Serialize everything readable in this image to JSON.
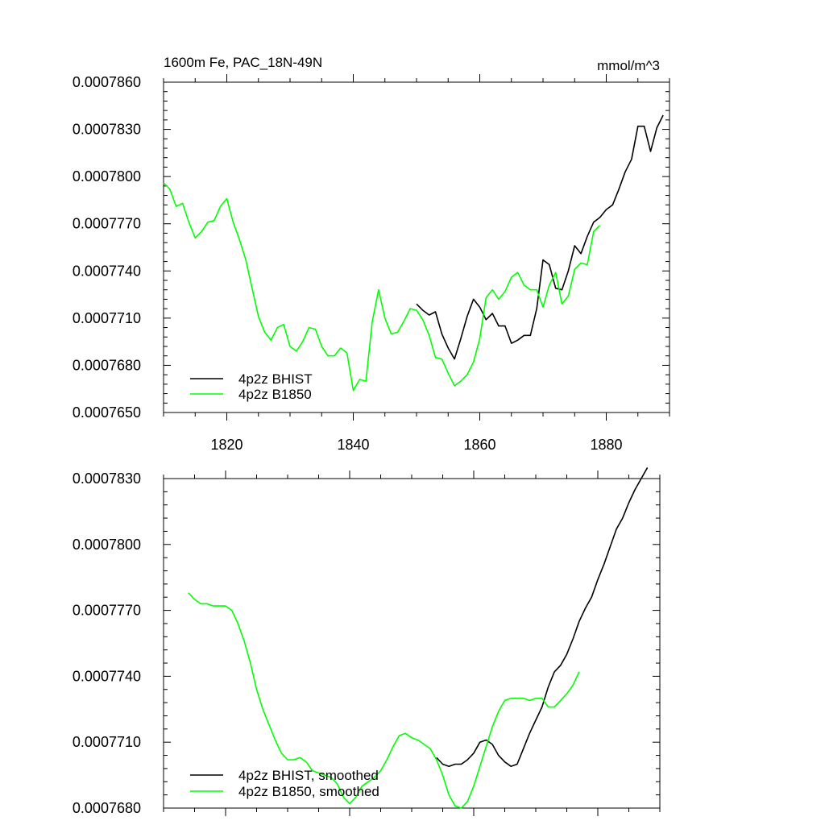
{
  "chart_data": [
    {
      "type": "line",
      "title_left": "1600m Fe, PAC_18N-49N",
      "title_right": "mmol/m^3",
      "xlim": [
        1810,
        1890
      ],
      "ylim": [
        0.000765,
        0.000786
      ],
      "x_ticks": [
        1820,
        1840,
        1860,
        1880
      ],
      "x_tick_labels": [
        "1820",
        "1840",
        "1860",
        "1880"
      ],
      "y_ticks": [
        0.000765,
        0.000768,
        0.000771,
        0.000774,
        0.000777,
        0.00078,
        0.000783,
        0.000786
      ],
      "y_tick_labels": [
        "0.0007650",
        "0.0007680",
        "0.0007710",
        "0.0007740",
        "0.0007770",
        "0.0007800",
        "0.0007830",
        "0.0007860"
      ],
      "legend_position": "bottom-left",
      "series": [
        {
          "name": "4p2z BHIST",
          "color": "#000000",
          "x": [
            1850,
            1851,
            1852,
            1853,
            1854,
            1855,
            1856,
            1857,
            1858,
            1859,
            1860,
            1861,
            1862,
            1863,
            1864,
            1865,
            1866,
            1867,
            1868,
            1869,
            1870,
            1871,
            1872,
            1873,
            1874,
            1875,
            1876,
            1877,
            1878,
            1879,
            1880,
            1881,
            1882,
            1883,
            1884,
            1885,
            1886,
            1887,
            1888,
            1889
          ],
          "values": [
            0.0007719,
            0.0007715,
            0.0007712,
            0.0007714,
            0.00077,
            0.0007691,
            0.0007684,
            0.0007697,
            0.0007711,
            0.0007722,
            0.0007717,
            0.0007709,
            0.0007713,
            0.0007705,
            0.0007705,
            0.0007694,
            0.0007696,
            0.0007699,
            0.0007699,
            0.0007716,
            0.0007747,
            0.0007744,
            0.0007729,
            0.0007728,
            0.000774,
            0.0007756,
            0.0007751,
            0.0007762,
            0.0007771,
            0.0007774,
            0.0007779,
            0.0007782,
            0.0007792,
            0.0007803,
            0.0007811,
            0.0007832,
            0.0007832,
            0.0007816,
            0.0007831,
            0.0007839
          ]
        },
        {
          "name": "4p2z B1850",
          "color": "#00ff00",
          "x": [
            1810,
            1811,
            1812,
            1813,
            1814,
            1815,
            1816,
            1817,
            1818,
            1819,
            1820,
            1821,
            1822,
            1823,
            1824,
            1825,
            1826,
            1827,
            1828,
            1829,
            1830,
            1831,
            1832,
            1833,
            1834,
            1835,
            1836,
            1837,
            1838,
            1839,
            1840,
            1841,
            1842,
            1843,
            1844,
            1845,
            1846,
            1847,
            1848,
            1849,
            1850,
            1851,
            1852,
            1853,
            1854,
            1855,
            1856,
            1857,
            1858,
            1859,
            1860,
            1861,
            1862,
            1863,
            1864,
            1865,
            1866,
            1867,
            1868,
            1869,
            1870,
            1871,
            1872,
            1873,
            1874,
            1875,
            1876,
            1877,
            1878,
            1879
          ],
          "values": [
            0.0007796,
            0.0007792,
            0.0007781,
            0.0007783,
            0.0007771,
            0.0007761,
            0.0007765,
            0.0007771,
            0.0007772,
            0.0007781,
            0.0007786,
            0.0007771,
            0.000776,
            0.0007747,
            0.0007729,
            0.0007711,
            0.0007701,
            0.0007696,
            0.0007704,
            0.0007706,
            0.0007692,
            0.0007689,
            0.0007695,
            0.0007704,
            0.0007703,
            0.0007692,
            0.0007686,
            0.0007686,
            0.0007691,
            0.0007688,
            0.0007664,
            0.0007671,
            0.000767,
            0.0007708,
            0.0007728,
            0.000771,
            0.00077,
            0.0007701,
            0.0007708,
            0.0007716,
            0.0007715,
            0.0007709,
            0.0007699,
            0.0007685,
            0.0007684,
            0.0007675,
            0.0007667,
            0.000767,
            0.0007674,
            0.0007682,
            0.0007697,
            0.0007723,
            0.0007728,
            0.0007722,
            0.0007727,
            0.0007736,
            0.0007739,
            0.0007731,
            0.0007728,
            0.0007728,
            0.0007717,
            0.0007731,
            0.0007739,
            0.0007719,
            0.0007724,
            0.0007741,
            0.0007745,
            0.0007744,
            0.0007765,
            0.0007769
          ]
        }
      ]
    },
    {
      "type": "line",
      "xlim": [
        1810,
        1890
      ],
      "ylim": [
        0.000768,
        0.000783
      ],
      "x_ticks": [
        1820,
        1840,
        1860,
        1880
      ],
      "x_tick_labels": [],
      "y_ticks": [
        0.000768,
        0.000771,
        0.000774,
        0.000777,
        0.00078,
        0.000783
      ],
      "y_tick_labels": [
        "0.0007680",
        "0.0007710",
        "0.0007740",
        "0.0007770",
        "0.0007800",
        "0.0007830"
      ],
      "legend_position": "bottom-left",
      "series": [
        {
          "name": "4p2z BHIST, smoothed",
          "color": "#000000",
          "x": [
            1854,
            1855,
            1856,
            1857,
            1858,
            1859,
            1860,
            1861,
            1862,
            1863,
            1864,
            1865,
            1866,
            1867,
            1868,
            1869,
            1870,
            1871,
            1872,
            1873,
            1874,
            1875,
            1876,
            1877,
            1878,
            1879,
            1880,
            1881,
            1882,
            1883,
            1884,
            1885,
            1886,
            1887,
            1888
          ],
          "values": [
            0.0007703,
            0.00077,
            0.0007699,
            0.00077,
            0.00077,
            0.0007702,
            0.0007705,
            0.000771,
            0.0007711,
            0.0007709,
            0.0007704,
            0.0007701,
            0.0007699,
            0.00077,
            0.0007707,
            0.0007714,
            0.000772,
            0.0007726,
            0.0007735,
            0.0007742,
            0.0007745,
            0.000775,
            0.0007757,
            0.0007765,
            0.0007771,
            0.0007776,
            0.0007784,
            0.0007791,
            0.0007799,
            0.0007807,
            0.0007812,
            0.0007819,
            0.0007825,
            0.000783,
            0.0007835
          ]
        },
        {
          "name": "4p2z B1850, smoothed",
          "color": "#00ff00",
          "x": [
            1814,
            1815,
            1816,
            1817,
            1818,
            1819,
            1820,
            1821,
            1822,
            1823,
            1824,
            1825,
            1826,
            1827,
            1828,
            1829,
            1830,
            1831,
            1832,
            1833,
            1834,
            1835,
            1836,
            1837,
            1838,
            1839,
            1840,
            1841,
            1842,
            1843,
            1844,
            1845,
            1846,
            1847,
            1848,
            1849,
            1850,
            1851,
            1852,
            1853,
            1854,
            1855,
            1856,
            1857,
            1858,
            1859,
            1860,
            1861,
            1862,
            1863,
            1864,
            1865,
            1866,
            1867,
            1868,
            1869,
            1870,
            1871,
            1872,
            1873,
            1874,
            1875,
            1876,
            1877
          ],
          "values": [
            0.0007778,
            0.0007775,
            0.0007773,
            0.0007773,
            0.0007772,
            0.0007772,
            0.0007772,
            0.000777,
            0.0007764,
            0.0007756,
            0.0007746,
            0.0007734,
            0.0007725,
            0.0007718,
            0.0007711,
            0.0007705,
            0.0007702,
            0.0007702,
            0.0007703,
            0.0007701,
            0.0007697,
            0.0007696,
            0.0007695,
            0.0007694,
            0.0007691,
            0.0007685,
            0.0007682,
            0.0007685,
            0.000769,
            0.0007692,
            0.0007694,
            0.0007697,
            0.0007702,
            0.0007708,
            0.0007713,
            0.0007714,
            0.0007712,
            0.0007711,
            0.0007709,
            0.0007707,
            0.0007702,
            0.0007695,
            0.0007686,
            0.0007681,
            0.000768,
            0.0007683,
            0.000769,
            0.0007699,
            0.0007708,
            0.0007717,
            0.0007724,
            0.0007729,
            0.000773,
            0.000773,
            0.000773,
            0.0007729,
            0.000773,
            0.000773,
            0.0007726,
            0.0007726,
            0.0007729,
            0.0007732,
            0.0007736,
            0.0007742
          ]
        }
      ]
    }
  ]
}
